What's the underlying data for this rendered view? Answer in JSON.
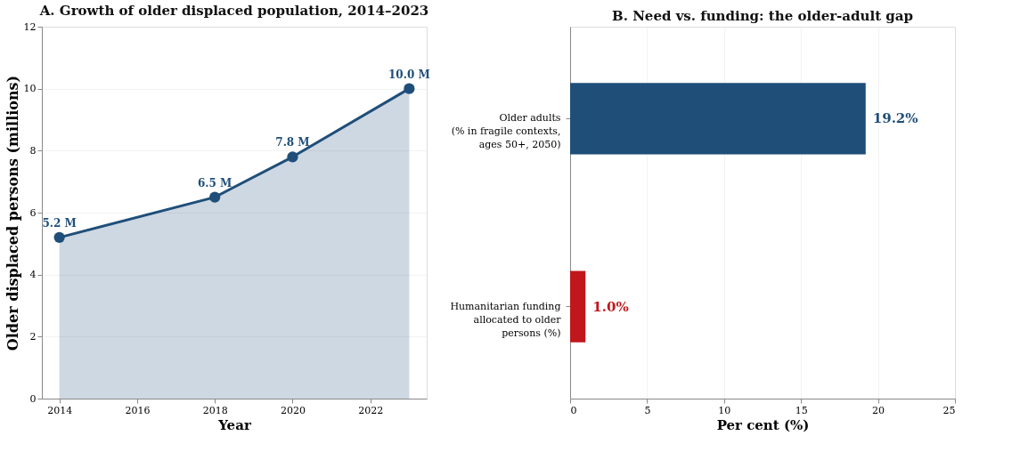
{
  "chart_data": [
    {
      "type": "area",
      "title": "A. Growth of older displaced population, 2014–2023",
      "xlabel": "Year",
      "ylabel": "Older displaced persons (millions)",
      "x": [
        2014,
        2018,
        2020,
        2023
      ],
      "series": [
        {
          "color": "#1f4e79",
          "values": [
            5.2,
            6.5,
            7.8,
            10.0
          ],
          "value_labels": [
            "5.2 M",
            "6.5 M",
            "7.8 M",
            "10.0 M"
          ]
        }
      ],
      "xlim": [
        2013.55,
        2023.45
      ],
      "xticks": [
        2014,
        2016,
        2018,
        2020,
        2022
      ],
      "ylim": [
        0,
        12
      ],
      "yticks": [
        0,
        2,
        4,
        6,
        8,
        10,
        12
      ],
      "grid": "y",
      "marker": "circle"
    },
    {
      "type": "bar",
      "orientation": "horizontal",
      "title": "B. Need vs. funding: the older-adult gap",
      "xlabel": "Per cent (%)",
      "categories": [
        "Older adults\n(% in fragile contexts,\nages 50+, 2050)",
        "Humanitarian funding\nallocated to older\npersons (%)"
      ],
      "values": [
        19.2,
        1.0
      ],
      "colors": [
        "#1f4e79",
        "#c0171c"
      ],
      "value_labels": [
        "19.2%",
        "1.0%"
      ],
      "xlim": [
        0,
        25
      ],
      "xticks": [
        0,
        5,
        10,
        15,
        20,
        25
      ],
      "grid": "x"
    }
  ]
}
